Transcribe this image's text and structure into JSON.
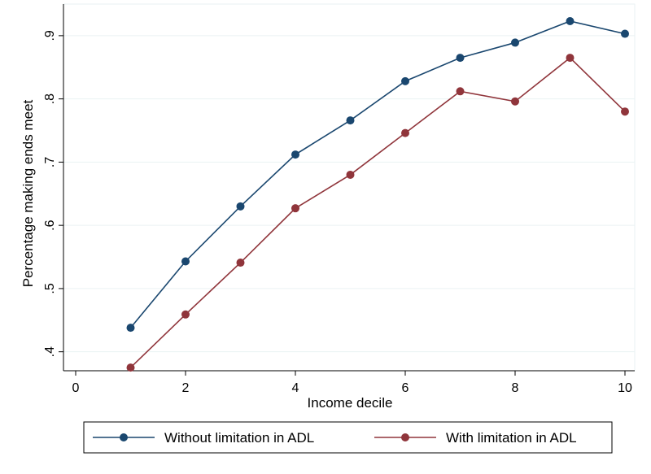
{
  "chart_data": {
    "type": "line",
    "title": "",
    "xlabel": "Income decile",
    "ylabel": "Percentage making ends meet",
    "xlim": [
      0,
      10
    ],
    "ylim": [
      0.37,
      0.95
    ],
    "x_ticks": [
      0,
      2,
      4,
      6,
      8,
      10
    ],
    "x_tick_labels": [
      "0",
      "2",
      "4",
      "6",
      "8",
      "10"
    ],
    "y_ticks": [
      0.4,
      0.5,
      0.6,
      0.7,
      0.8,
      0.9
    ],
    "y_tick_labels": [
      ".4",
      ".5",
      ".6",
      ".7",
      ".8",
      ".9"
    ],
    "grid": true,
    "legend_position": "bottom",
    "x": [
      1,
      2,
      3,
      4,
      5,
      6,
      7,
      8,
      9,
      10
    ],
    "series": [
      {
        "name": "Without limitation in ADL",
        "color": "#1a476f",
        "values": [
          0.438,
          0.543,
          0.63,
          0.712,
          0.766,
          0.828,
          0.865,
          0.889,
          0.923,
          0.903
        ]
      },
      {
        "name": "With limitation in ADL",
        "color": "#90353b",
        "values": [
          0.375,
          0.459,
          0.541,
          0.627,
          0.68,
          0.746,
          0.812,
          0.796,
          0.865,
          0.78
        ]
      }
    ]
  }
}
